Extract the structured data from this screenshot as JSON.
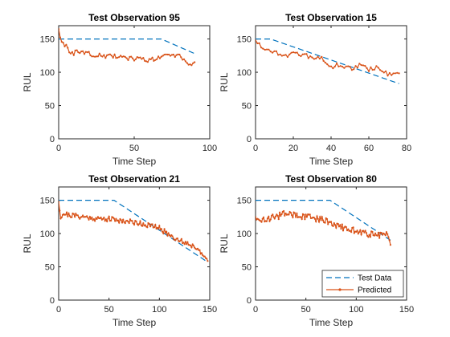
{
  "figure": {
    "legend": {
      "placement": "bottom-right of last panel",
      "entries": [
        "Test Data",
        "Predicted"
      ]
    },
    "colors": {
      "test_data": "#0072BD",
      "predicted": "#D95319",
      "axes": "#262626",
      "background": "#ffffff"
    },
    "grid": false
  },
  "chart_data": [
    {
      "type": "line",
      "title": "Test Observation 95",
      "xlabel": "Time Step",
      "ylabel": "RUL",
      "xlim": [
        0,
        100
      ],
      "ylim": [
        0,
        170
      ],
      "xticks": [
        0,
        50,
        100
      ],
      "yticks": [
        0,
        50,
        100,
        150
      ],
      "n": 90,
      "series": [
        {
          "name": "Test Data",
          "style": "dashed",
          "x": [
            0,
            68,
            90
          ],
          "y": [
            150,
            150,
            128
          ]
        },
        {
          "name": "Predicted",
          "style": "line-dots",
          "seed": 95,
          "amp": 3.5,
          "x": [
            0,
            2,
            5,
            8,
            12,
            20,
            30,
            40,
            50,
            55,
            60,
            70,
            80,
            85,
            88,
            90
          ],
          "y": [
            165,
            143,
            140,
            127,
            131,
            128,
            124,
            123,
            120,
            121,
            118,
            124,
            126,
            117,
            110,
            113
          ]
        }
      ]
    },
    {
      "type": "line",
      "title": "Test Observation 15",
      "xlabel": "Time Step",
      "ylabel": "RUL",
      "xlim": [
        0,
        80
      ],
      "ylim": [
        0,
        170
      ],
      "xticks": [
        0,
        20,
        40,
        60,
        80
      ],
      "yticks": [
        0,
        50,
        100,
        150
      ],
      "n": 76,
      "series": [
        {
          "name": "Test Data",
          "style": "dashed",
          "x": [
            0,
            8,
            76
          ],
          "y": [
            150,
            150,
            83
          ]
        },
        {
          "name": "Predicted",
          "style": "line-dots",
          "seed": 15,
          "amp": 3.5,
          "x": [
            0,
            3,
            6,
            10,
            15,
            20,
            25,
            30,
            35,
            38,
            40,
            45,
            50,
            55,
            60,
            65,
            70,
            72,
            74,
            76
          ],
          "y": [
            148,
            140,
            132,
            132,
            126,
            127,
            125,
            123,
            120,
            112,
            107,
            112,
            106,
            110,
            104,
            108,
            97,
            95,
            100,
            99
          ]
        }
      ]
    },
    {
      "type": "line",
      "title": "Test Observation 21",
      "xlabel": "Time Step",
      "ylabel": "RUL",
      "xlim": [
        0,
        150
      ],
      "ylim": [
        0,
        170
      ],
      "xticks": [
        0,
        50,
        100,
        150
      ],
      "yticks": [
        0,
        50,
        100,
        150
      ],
      "n": 148,
      "series": [
        {
          "name": "Test Data",
          "style": "dashed",
          "x": [
            0,
            55,
            148
          ],
          "y": [
            150,
            150,
            57
          ]
        },
        {
          "name": "Predicted",
          "style": "line-dots",
          "seed": 21,
          "amp": 4,
          "x": [
            0,
            2,
            5,
            10,
            20,
            30,
            40,
            50,
            60,
            70,
            80,
            90,
            100,
            110,
            120,
            130,
            135,
            140,
            145,
            148
          ],
          "y": [
            148,
            125,
            130,
            128,
            126,
            124,
            122,
            122,
            120,
            118,
            116,
            112,
            108,
            98,
            90,
            84,
            80,
            76,
            62,
            57
          ]
        }
      ]
    },
    {
      "type": "line",
      "title": "Test Observation 80",
      "xlabel": "Time Step",
      "ylabel": "RUL",
      "xlim": [
        0,
        150
      ],
      "ylim": [
        0,
        170
      ],
      "xticks": [
        0,
        50,
        100,
        150
      ],
      "yticks": [
        0,
        50,
        100,
        150
      ],
      "n": 134,
      "series": [
        {
          "name": "Test Data",
          "style": "dashed",
          "x": [
            0,
            74,
            134
          ],
          "y": [
            150,
            150,
            90
          ]
        },
        {
          "name": "Predicted",
          "style": "line-dots",
          "seed": 80,
          "amp": 5,
          "x": [
            0,
            5,
            10,
            20,
            30,
            40,
            50,
            60,
            70,
            80,
            90,
            100,
            110,
            120,
            125,
            128,
            130,
            132,
            134
          ],
          "y": [
            125,
            117,
            122,
            125,
            130,
            127,
            125,
            122,
            120,
            112,
            108,
            104,
            100,
            98,
            97,
            100,
            100,
            92,
            85
          ]
        }
      ]
    }
  ]
}
